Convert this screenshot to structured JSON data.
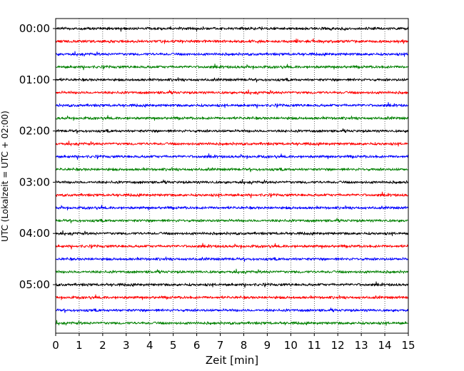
{
  "chart_data": {
    "type": "line",
    "title": "",
    "xlabel": "Zeit  [min]",
    "ylabel": "UTC (Lokalzeit = UTC + 02:00)",
    "xlim": [
      0,
      15
    ],
    "x_ticks": [
      0,
      1,
      2,
      3,
      4,
      5,
      6,
      7,
      8,
      9,
      10,
      11,
      12,
      13,
      14,
      15
    ],
    "y_tick_labels": [
      "00:00",
      "01:00",
      "02:00",
      "03:00",
      "04:00",
      "05:00"
    ],
    "grid": "vertical dotted",
    "line_interval_min": 15,
    "colors": [
      "#000000",
      "#ff0000",
      "#0000ff",
      "#008000"
    ],
    "traces": [
      {
        "label": "00:00",
        "color": "#000000",
        "start_min": 0,
        "end_min": 15
      },
      {
        "label": "00:15",
        "color": "#ff0000",
        "start_min": 0,
        "end_min": 15
      },
      {
        "label": "00:30",
        "color": "#0000ff",
        "start_min": 0,
        "end_min": 15
      },
      {
        "label": "00:45",
        "color": "#008000",
        "start_min": 0,
        "end_min": 15
      },
      {
        "label": "01:00",
        "color": "#000000",
        "start_min": 0,
        "end_min": 15
      },
      {
        "label": "01:15",
        "color": "#ff0000",
        "start_min": 0,
        "end_min": 15
      },
      {
        "label": "01:30",
        "color": "#0000ff",
        "start_min": 0,
        "end_min": 15
      },
      {
        "label": "01:45",
        "color": "#008000",
        "start_min": 0,
        "end_min": 15
      },
      {
        "label": "02:00",
        "color": "#000000",
        "start_min": 0,
        "end_min": 15
      },
      {
        "label": "02:15",
        "color": "#ff0000",
        "start_min": 0,
        "end_min": 15
      },
      {
        "label": "02:30",
        "color": "#0000ff",
        "start_min": 0,
        "end_min": 15
      },
      {
        "label": "02:45",
        "color": "#008000",
        "start_min": 0,
        "end_min": 15
      },
      {
        "label": "03:00",
        "color": "#000000",
        "start_min": 0,
        "end_min": 15
      },
      {
        "label": "03:15",
        "color": "#ff0000",
        "start_min": 0,
        "end_min": 15
      },
      {
        "label": "03:30",
        "color": "#0000ff",
        "start_min": 0,
        "end_min": 15
      },
      {
        "label": "03:45",
        "color": "#008000",
        "start_min": 0,
        "end_min": 15
      },
      {
        "label": "04:00",
        "color": "#000000",
        "start_min": 0,
        "end_min": 15
      },
      {
        "label": "04:15",
        "color": "#ff0000",
        "start_min": 0,
        "end_min": 15
      },
      {
        "label": "04:30",
        "color": "#0000ff",
        "start_min": 0,
        "end_min": 15
      },
      {
        "label": "04:45",
        "color": "#008000",
        "start_min": 0,
        "end_min": 15
      },
      {
        "label": "05:00",
        "color": "#000000",
        "start_min": 0,
        "end_min": 15
      },
      {
        "label": "05:15",
        "color": "#ff0000",
        "start_min": 0,
        "end_min": 15
      },
      {
        "label": "05:30",
        "color": "#0000ff",
        "start_min": 0,
        "end_min": 15
      },
      {
        "label": "05:45",
        "color": "#008000",
        "start_min": 0,
        "end_min": 15
      }
    ]
  }
}
